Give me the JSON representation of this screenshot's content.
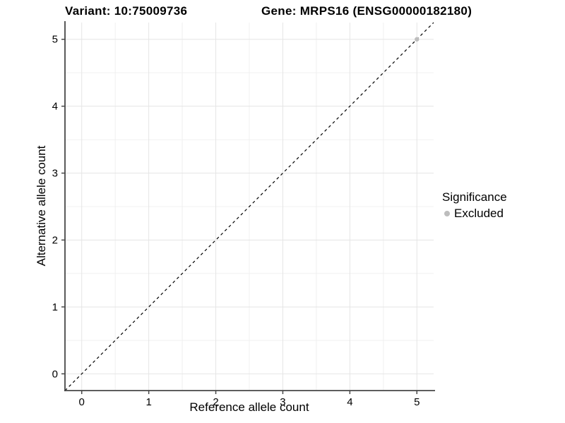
{
  "header": {
    "title_left": "Variant: 10:75009736",
    "title_right": "Gene: MRPS16 (ENSG00000182180)"
  },
  "legend": {
    "title": "Significance",
    "items": [
      {
        "label": "Excluded",
        "color": "#bdbdbd",
        "marker": "circle"
      }
    ]
  },
  "colors": {
    "background": "#ffffff",
    "grid_major": "#e5e5e5",
    "grid_minor": "#f0f0f0",
    "axis": "#474747",
    "tick_text": "#000000",
    "reference_line": "#000000"
  },
  "chart_data": {
    "type": "scatter",
    "title_left": "Variant: 10:75009736",
    "title_right": "Gene: MRPS16 (ENSG00000182180)",
    "xlabel": "Reference allele count",
    "ylabel": "Alternative allele count",
    "xlim": [
      -0.25,
      5.25
    ],
    "ylim": [
      -0.25,
      5.25
    ],
    "xticks": [
      0,
      1,
      2,
      3,
      4,
      5
    ],
    "yticks": [
      0,
      1,
      2,
      3,
      4,
      5
    ],
    "grid": true,
    "grid_minor_step": 0.5,
    "legend_position": "right",
    "series": [
      {
        "name": "Excluded",
        "color": "#bdbdbd",
        "marker": "circle",
        "points": [
          [
            5,
            5
          ]
        ]
      }
    ],
    "reference_line": {
      "description": "identity line y = x",
      "style": "dashed",
      "color": "#000000",
      "from": [
        -0.25,
        -0.25
      ],
      "to": [
        5.25,
        5.25
      ]
    }
  }
}
